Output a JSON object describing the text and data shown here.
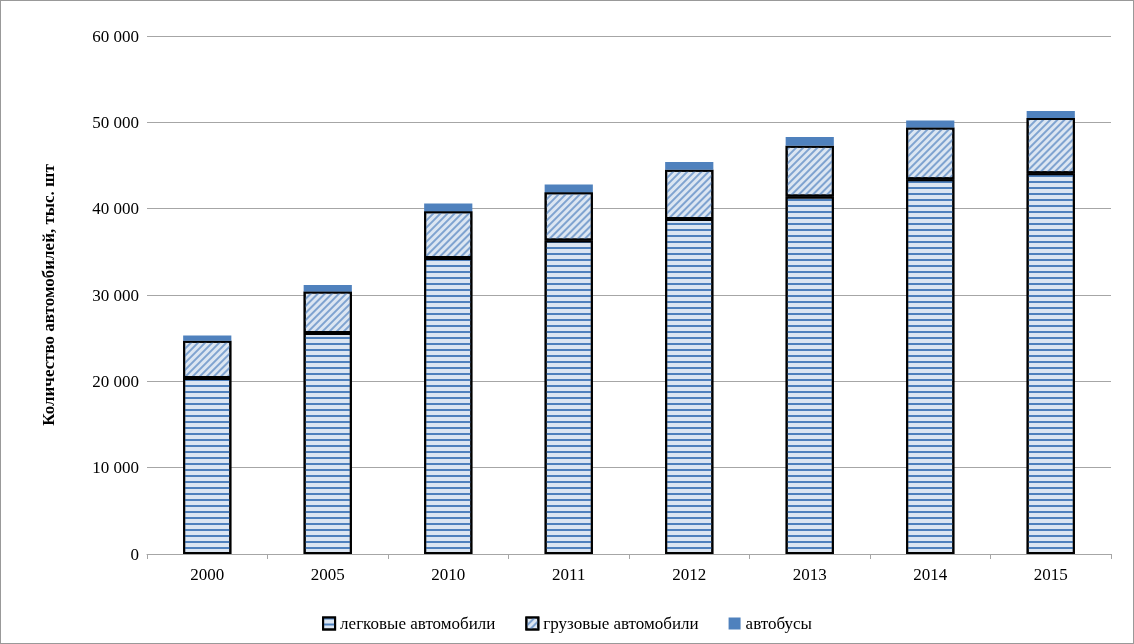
{
  "chart_data": {
    "type": "bar",
    "stacked": true,
    "ylabel": "Количество автомобилей, тыс. шт",
    "categories": [
      "2000",
      "2005",
      "2010",
      "2011",
      "2012",
      "2013",
      "2014",
      "2015"
    ],
    "series": [
      {
        "name": "легковые автомобили",
        "color": "#dce6f2",
        "values": [
          20400,
          25600,
          34300,
          36300,
          38800,
          41400,
          43400,
          44100
        ]
      },
      {
        "name": "грузовые автомобили",
        "color": "#dce6f2",
        "values": [
          4300,
          4800,
          5400,
          5600,
          5700,
          5900,
          6000,
          6400
        ]
      },
      {
        "name": "автобусы",
        "color": "#4f81bd",
        "values": [
          600,
          750,
          900,
          900,
          900,
          1000,
          800,
          800
        ]
      }
    ],
    "ylim": [
      0,
      60000
    ],
    "yticks": [
      {
        "value": 0,
        "label": "0"
      },
      {
        "value": 10000,
        "label": "10 000"
      },
      {
        "value": 20000,
        "label": "20 000"
      },
      {
        "value": 30000,
        "label": "30 000"
      },
      {
        "value": 40000,
        "label": "40 000"
      },
      {
        "value": 50000,
        "label": "50 000"
      },
      {
        "value": 60000,
        "label": "60 000"
      }
    ],
    "grid": "y",
    "legend": "bottom"
  }
}
